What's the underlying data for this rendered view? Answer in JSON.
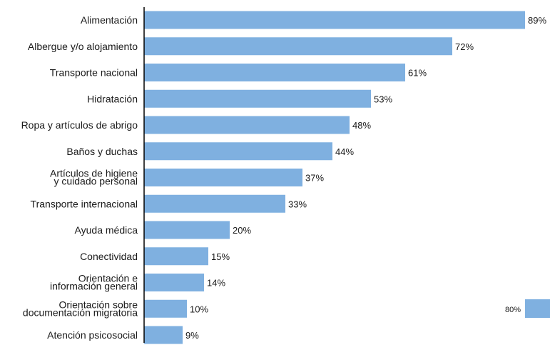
{
  "chart_data": {
    "type": "bar",
    "orientation": "horizontal",
    "categories": [
      "Alimentación",
      "Albergue y/o alojamiento",
      "Transporte nacional",
      "Hidratación",
      "Ropa y artículos de abrigo",
      "Baños y duchas",
      "Artículos de higiene\ny cuidado personal",
      "Transporte internacional",
      "Ayuda médica",
      "Conectividad",
      "Orientación e\ninformación general",
      "Orientación sobre\ndocumentación migratoria",
      "Atención psicosocial"
    ],
    "values": [
      89,
      72,
      61,
      53,
      48,
      44,
      37,
      33,
      20,
      15,
      14,
      10,
      9
    ],
    "value_labels": [
      "89%",
      "72%",
      "61%",
      "53%",
      "48%",
      "44%",
      "37%",
      "33%",
      "20%",
      "15%",
      "14%",
      "10%",
      "9%"
    ],
    "xlim": [
      0,
      100
    ],
    "grid": false,
    "bar_color": "#7fb0e0",
    "legend": {
      "placement": "bottom-right",
      "label": "80%",
      "color": "#7fb0e0"
    }
  }
}
